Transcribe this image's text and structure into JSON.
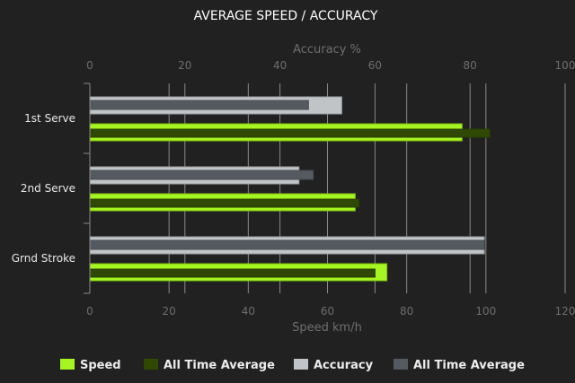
{
  "chart_data": {
    "type": "bar",
    "orientation": "horizontal",
    "title": "AVERAGE SPEED / ACCURACY",
    "categories": [
      "1st Serve",
      "2nd Serve",
      "Grnd Stroke"
    ],
    "top_axis": {
      "label": "Accuracy %",
      "range": [
        0,
        100
      ],
      "ticks": [
        "0",
        "20",
        "40",
        "60",
        "80",
        "100"
      ]
    },
    "bottom_axis": {
      "label": "Speed km/h",
      "range": [
        0,
        120
      ],
      "ticks": [
        "0",
        "20",
        "40",
        "60",
        "80",
        "100",
        "120"
      ]
    },
    "series": [
      {
        "name": "Speed",
        "axis": "bottom",
        "color": "#a6f522",
        "values": [
          94,
          67,
          75
        ]
      },
      {
        "name": "All Time Average",
        "axis": "bottom",
        "color": "#2f4a00",
        "values": [
          101,
          68,
          72
        ]
      },
      {
        "name": "Accuracy",
        "axis": "top",
        "color": "#c0c4c7",
        "values": [
          53,
          44,
          83
        ]
      },
      {
        "name": "All Time Average",
        "axis": "top",
        "color": "#555a61",
        "values": [
          46,
          47,
          83
        ]
      }
    ],
    "grid": true,
    "legend_position": "bottom"
  }
}
